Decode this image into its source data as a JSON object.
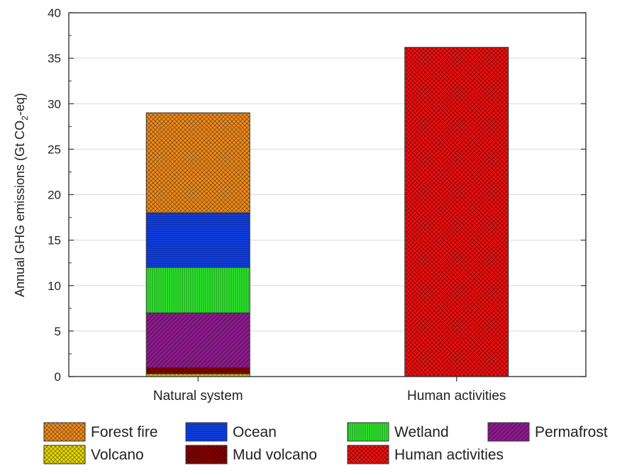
{
  "chart_data": {
    "type": "bar",
    "stacked": true,
    "categories": [
      "Natural system",
      "Human activities"
    ],
    "ylabel": {
      "main": "Annual GHG emissions (Gt CO",
      "sub": "2",
      "end": "-eq)"
    },
    "ylim": [
      0,
      40
    ],
    "yticks": [
      0,
      5,
      10,
      15,
      20,
      25,
      30,
      35,
      40
    ],
    "grid": true,
    "legend_position": "bottom",
    "series": [
      {
        "name": "Volcano",
        "color": "#e6d800",
        "pattern": "cross",
        "values": [
          0.3,
          0
        ]
      },
      {
        "name": "Mud volcano",
        "color": "#8b0000",
        "pattern": "cross",
        "values": [
          0.7,
          0
        ]
      },
      {
        "name": "Permafrost",
        "color": "#8b1a8b",
        "pattern": "diagonal",
        "values": [
          6.0,
          0
        ]
      },
      {
        "name": "Wetland",
        "color": "#2ee82e",
        "pattern": "vertical",
        "values": [
          5.0,
          0
        ]
      },
      {
        "name": "Ocean",
        "color": "#1040e8",
        "pattern": "horizontal",
        "values": [
          6.0,
          0
        ]
      },
      {
        "name": "Forest fire",
        "color": "#f08c1e",
        "pattern": "cross",
        "values": [
          11.0,
          0
        ]
      },
      {
        "name": "Human activities",
        "color": "#f01010",
        "pattern": "cross",
        "values": [
          0,
          36.2
        ]
      }
    ],
    "legend_order": [
      "Forest fire",
      "Ocean",
      "Wetland",
      "Permafrost",
      "Volcano",
      "Mud volcano",
      "Human activities"
    ]
  }
}
